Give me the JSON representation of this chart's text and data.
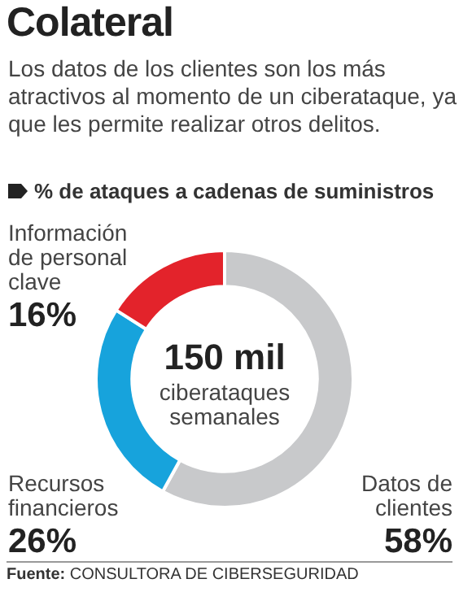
{
  "chart_data": {
    "type": "donut",
    "title": "Colateral",
    "subtitle": "Los datos de los clientes son los más atractivos al momento de un ciberataque, ya que les permite realizar otros delitos.",
    "legend_title": "% de ataques a cadenas de suministros",
    "categories": [
      "Datos de clientes",
      "Recursos financieros",
      "Información de personal clave"
    ],
    "values": [
      58,
      26,
      16
    ],
    "colors": [
      "#c8c9cb",
      "#17a3dc",
      "#e3232b"
    ],
    "value_labels": [
      "58%",
      "26%",
      "16%"
    ],
    "annotations": [
      "150 mil",
      "ciberataques semanales",
      "Fuente: CONSULTORA DE CIBERSEGURIDAD"
    ],
    "legend": false
  }
}
